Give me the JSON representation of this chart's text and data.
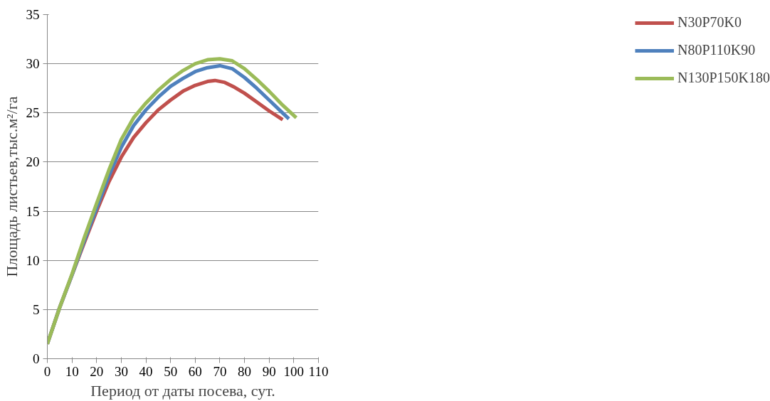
{
  "chart_data": {
    "type": "line",
    "xlabel": "Период от даты посева, сут.",
    "ylabel": "Площадь листьев,тыс.м²/га",
    "xlim": [
      0,
      110
    ],
    "xticks": [
      0,
      10,
      20,
      30,
      40,
      50,
      60,
      70,
      80,
      90,
      100,
      110
    ],
    "ylim": [
      0,
      35
    ],
    "yticks": [
      0,
      5,
      10,
      15,
      20,
      25,
      30,
      35
    ],
    "grid": "y",
    "legend": "right",
    "line_style": "solid",
    "marker": "none",
    "series": [
      {
        "name": "N30P70K0",
        "color": "#c0504d",
        "x": [
          0,
          5,
          10,
          15,
          20,
          25,
          30,
          35,
          40,
          45,
          50,
          55,
          60,
          65,
          68,
          72,
          76,
          80,
          85,
          90,
          95.5
        ],
        "values": [
          1.5,
          5.2,
          8.5,
          11.8,
          15,
          18,
          20.5,
          22.5,
          24,
          25.3,
          26.3,
          27.2,
          27.8,
          28.2,
          28.3,
          28.1,
          27.6,
          27,
          26.1,
          25.2,
          24.3
        ]
      },
      {
        "name": "N80P110K90",
        "color": "#4f81bd",
        "x": [
          0,
          5,
          10,
          15,
          20,
          25,
          30,
          35,
          40,
          45,
          50,
          55,
          60,
          65,
          70,
          75,
          80,
          85,
          90,
          95,
          98
        ],
        "values": [
          1.5,
          5.2,
          8.5,
          12,
          15.3,
          18.6,
          21.5,
          23.7,
          25.3,
          26.6,
          27.7,
          28.5,
          29.2,
          29.6,
          29.8,
          29.5,
          28.6,
          27.5,
          26.3,
          25.1,
          24.4
        ]
      },
      {
        "name": "N130P150K180",
        "color": "#9bbb59",
        "x": [
          0,
          5,
          10,
          15,
          20,
          25,
          30,
          35,
          40,
          45,
          50,
          55,
          60,
          65,
          70,
          75,
          80,
          85,
          90,
          95,
          101
        ],
        "values": [
          1.5,
          5.2,
          8.6,
          12.3,
          15.8,
          19.2,
          22.3,
          24.5,
          26,
          27.3,
          28.4,
          29.3,
          30,
          30.4,
          30.5,
          30.3,
          29.5,
          28.4,
          27.2,
          25.9,
          24.5
        ]
      }
    ]
  }
}
